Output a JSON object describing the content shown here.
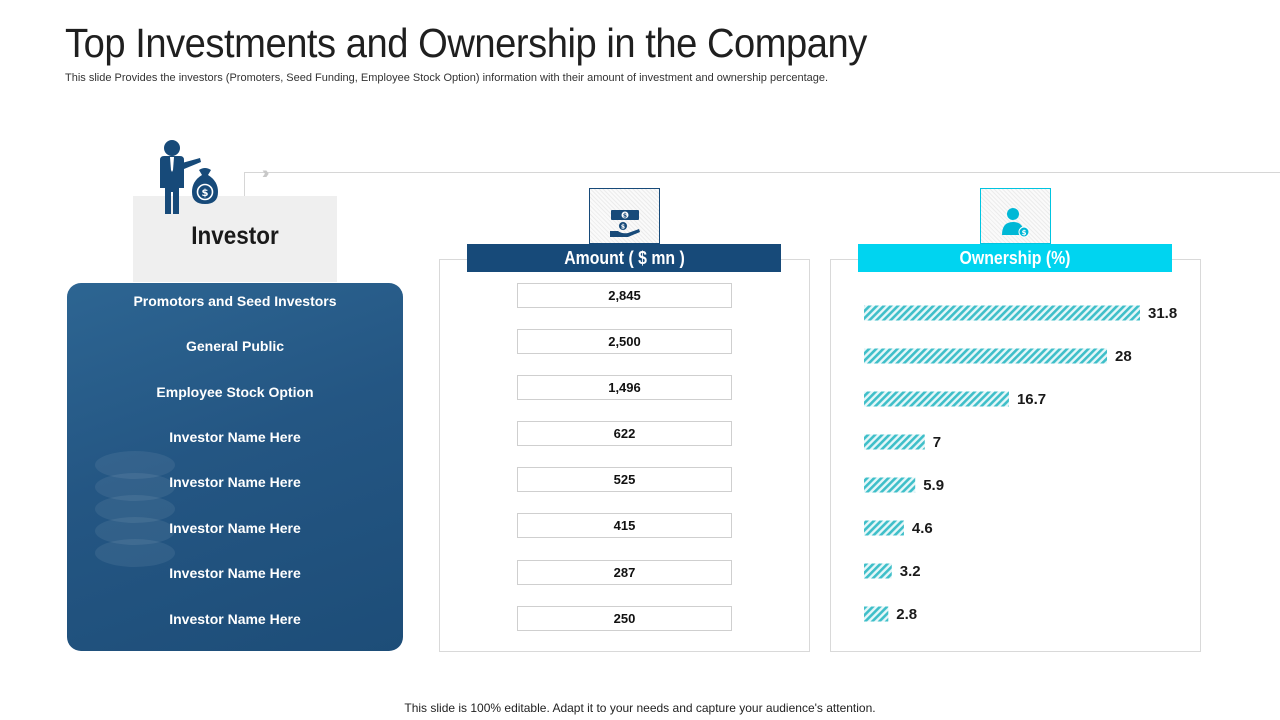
{
  "slide": {
    "title": "Top Investments and Ownership in the Company",
    "subtitle": "This slide Provides the investors (Promoters, Seed Funding, Employee Stock Option) information with their amount of investment and ownership percentage.",
    "footer": "This slide is 100% editable. Adapt it to your needs and capture your audience's attention."
  },
  "investor": {
    "header": "Investor",
    "icon": "businessman-money-bag-icon",
    "items": [
      "Promotors and Seed Investors",
      "General Public",
      "Employee Stock Option",
      "Investor Name Here",
      "Investor Name Here",
      "Investor Name Here",
      "Investor Name Here",
      "Investor Name Here"
    ]
  },
  "amount": {
    "header": "Amount ( $ mn )",
    "icon": "cash-hand-icon",
    "values": [
      "2,845",
      "2,500",
      "1,496",
      "622",
      "525",
      "415",
      "287",
      "250"
    ]
  },
  "ownership": {
    "header": "Ownership (%)",
    "icon": "user-dollar-icon"
  },
  "colors": {
    "navy": "#174a79",
    "cyan": "#00d4f0",
    "bar_teal": "#3fbfc9",
    "panel_blue": "#245683"
  },
  "chart_data": {
    "type": "bar",
    "orientation": "horizontal",
    "categories": [
      "Promotors and Seed Investors",
      "General Public",
      "Employee Stock Option",
      "Investor Name Here",
      "Investor Name Here",
      "Investor Name Here",
      "Investor Name Here",
      "Investor Name Here"
    ],
    "values": [
      31.8,
      28,
      16.7,
      7,
      5.9,
      4.6,
      3.2,
      2.8
    ],
    "labels": [
      "31.8",
      "28",
      "16.7",
      "7",
      "5.9",
      "4.6",
      "3.2",
      "2.8"
    ],
    "xlim": [
      0,
      31.8
    ],
    "grid": false,
    "legend": "none"
  }
}
